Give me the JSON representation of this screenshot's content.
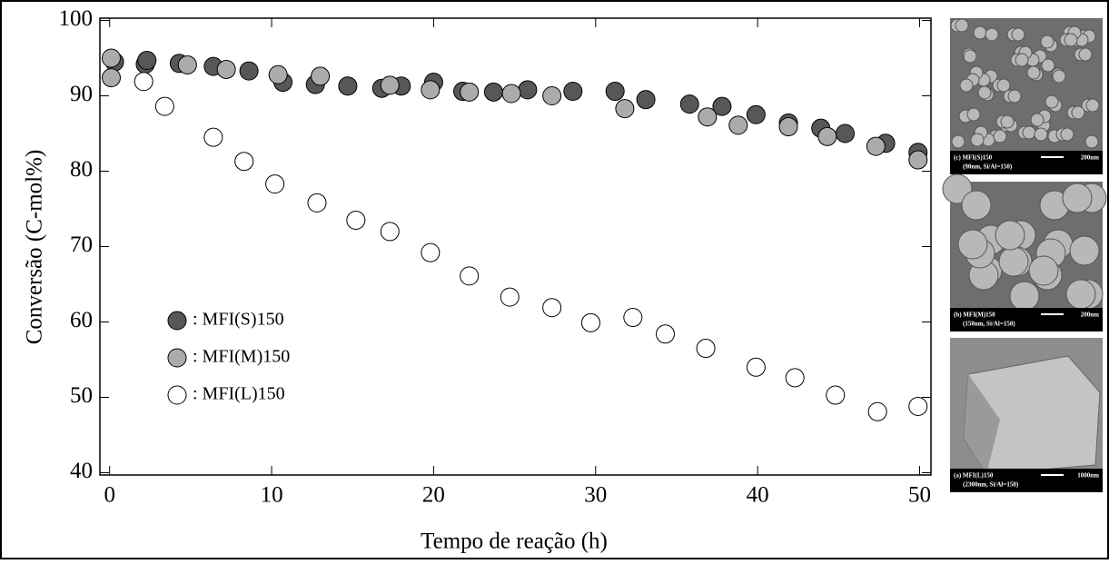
{
  "chart_data": {
    "type": "scatter",
    "x_label": "Tempo de reação (h)",
    "y_label": "Conversão (C-mol%)",
    "xlim": [
      -0.6,
      50.7
    ],
    "ylim": [
      39.7,
      100.3
    ],
    "xticks": [
      0,
      10,
      20,
      30,
      40,
      50
    ],
    "yticks": [
      40,
      50,
      60,
      70,
      80,
      90,
      100
    ],
    "series": [
      {
        "name": ": MFI(S)150",
        "color": "#575757",
        "x": [
          0.3,
          2.2,
          2.3,
          4.3,
          6.4,
          8.6,
          10.7,
          12.7,
          14.7,
          16.8,
          18.0,
          20.0,
          21.8,
          23.7,
          25.8,
          28.6,
          31.2,
          33.1,
          35.8,
          37.8,
          39.9,
          41.9,
          43.9,
          45.4,
          47.9,
          49.9
        ],
        "values": [
          94.5,
          94.2,
          94.7,
          94.3,
          93.9,
          93.3,
          91.8,
          91.5,
          91.3,
          91.0,
          91.3,
          91.8,
          90.6,
          90.5,
          90.8,
          90.6,
          90.6,
          89.5,
          88.9,
          88.6,
          87.5,
          86.4,
          85.7,
          85.0,
          83.7,
          82.5
        ]
      },
      {
        "name": ": MFI(M)150",
        "color": "#ababab",
        "x": [
          0.1,
          0.1,
          4.8,
          7.2,
          10.4,
          13.0,
          17.3,
          19.8,
          22.2,
          24.8,
          27.3,
          31.8,
          36.9,
          38.8,
          41.9,
          44.3,
          47.3,
          49.9
        ],
        "values": [
          95.0,
          92.4,
          94.1,
          93.5,
          92.8,
          92.6,
          91.4,
          90.8,
          90.5,
          90.3,
          90.0,
          88.3,
          87.2,
          86.1,
          85.9,
          84.6,
          83.3,
          81.5
        ]
      },
      {
        "name": ": MFI(L)150",
        "color": "#ffffff",
        "x": [
          2.1,
          3.4,
          6.4,
          8.3,
          10.2,
          12.8,
          15.2,
          17.3,
          19.8,
          22.2,
          24.7,
          27.3,
          29.7,
          32.3,
          34.3,
          36.8,
          39.9,
          42.3,
          44.8,
          47.4,
          49.9
        ],
        "values": [
          91.9,
          88.6,
          84.5,
          81.3,
          78.3,
          75.8,
          73.5,
          72.0,
          69.2,
          66.1,
          63.3,
          61.9,
          59.9,
          60.6,
          58.4,
          56.5,
          54.0,
          52.6,
          50.3,
          48.1,
          48.8
        ]
      }
    ]
  },
  "images": [
    {
      "caption": "(c) MFI(S)150",
      "scale": "200nm",
      "detail": "(90nm, Si/Al=150)"
    },
    {
      "caption": "(b) MFI(M)150",
      "scale": "200nm",
      "detail": "(150nm, Si/Al=150)"
    },
    {
      "caption": "(a) MFI(L)150",
      "scale": "1000nm",
      "detail": "(2300nm, Si/Al=150)"
    }
  ]
}
